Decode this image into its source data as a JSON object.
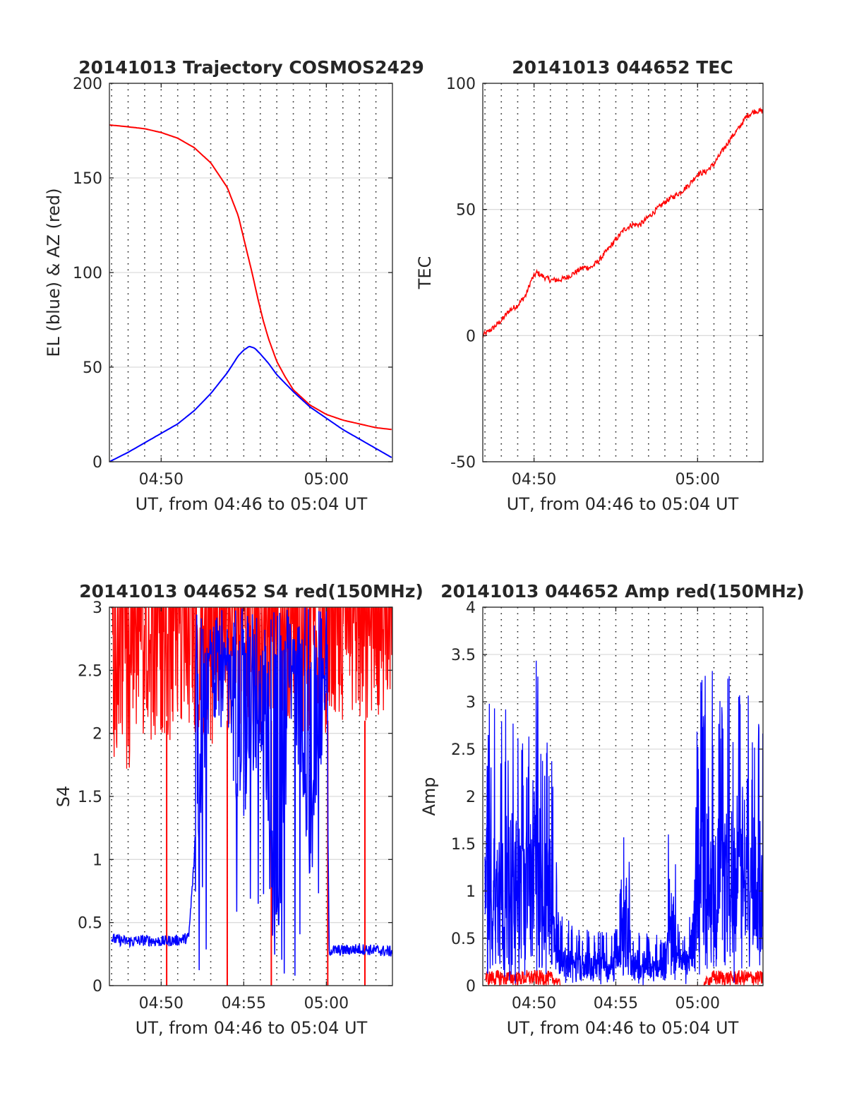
{
  "colors": {
    "el": "#0000ff",
    "az": "#ff0000",
    "tec": "#ff0000",
    "s4_red": "#ff0000",
    "s4_blue": "#0000ff",
    "amp_red": "#ff0000",
    "amp_blue": "#0000ff"
  },
  "chart_data": [
    {
      "id": "trajectory",
      "type": "line",
      "title": "20141013 Trajectory COSMOS2429",
      "xlabel": "UT, from 04:46 to 05:04 UT",
      "ylabel": "EL (blue) & AZ (red)",
      "xlim": [
        "04:46:52",
        "05:04:00"
      ],
      "ylim": [
        0,
        200
      ],
      "yticks": [
        0,
        50,
        100,
        150,
        200
      ],
      "xticks": [
        "04:50",
        "05:00"
      ],
      "vgrid_every_min": 1,
      "hgrid": true,
      "series": [
        {
          "color": "red",
          "x": [
            "04:46:52",
            "04:48:00",
            "04:49:00",
            "04:50:00",
            "04:51:00",
            "04:52:00",
            "04:53:00",
            "04:54:00",
            "04:54:40",
            "04:55:00",
            "04:55:30",
            "04:55:50",
            "04:56:10",
            "04:56:30",
            "04:57:00",
            "04:57:30",
            "04:58:00",
            "04:59:00",
            "05:00:00",
            "05:01:00",
            "05:02:00",
            "05:03:00",
            "05:04:00"
          ],
          "y": [
            178,
            177,
            176,
            174,
            171,
            166,
            158,
            145,
            130,
            118,
            100,
            87,
            75,
            65,
            53,
            45,
            38,
            30,
            25,
            22,
            20,
            18,
            17
          ]
        },
        {
          "color": "blue",
          "x": [
            "04:46:52",
            "04:48:00",
            "04:49:00",
            "04:50:00",
            "04:51:00",
            "04:52:00",
            "04:53:00",
            "04:54:00",
            "04:54:40",
            "04:55:00",
            "04:55:20",
            "04:55:40",
            "04:56:00",
            "04:56:30",
            "04:57:00",
            "04:58:00",
            "04:59:00",
            "05:00:00",
            "05:01:00",
            "05:02:00",
            "05:03:00",
            "05:04:00"
          ],
          "y": [
            0,
            5,
            10,
            15,
            20,
            27,
            36,
            47,
            56,
            59,
            61,
            60,
            57,
            52,
            46,
            37,
            29,
            23,
            17,
            12,
            7,
            2
          ]
        }
      ]
    },
    {
      "id": "tec",
      "type": "line",
      "title": "20141013 044652 TEC",
      "xlabel": "UT, from 04:46 to 05:04 UT",
      "ylabel": "TEC",
      "xlim": [
        "04:46:52",
        "05:04:00"
      ],
      "ylim": [
        -50,
        100
      ],
      "yticks": [
        -50,
        0,
        50,
        100
      ],
      "xticks": [
        "04:50",
        "05:00"
      ],
      "vgrid_every_min": 1,
      "hgrid": true,
      "series": [
        {
          "color": "red",
          "x": [
            "04:46:52",
            "04:47:30",
            "04:48:00",
            "04:48:30",
            "04:49:00",
            "04:49:30",
            "04:49:50",
            "04:50:10",
            "04:50:40",
            "04:51:00",
            "04:51:30",
            "04:52:00",
            "04:52:30",
            "04:53:00",
            "04:53:30",
            "04:54:00",
            "04:54:30",
            "04:55:00",
            "04:55:30",
            "04:56:00",
            "04:56:30",
            "04:57:00",
            "04:57:30",
            "04:58:00",
            "04:58:30",
            "04:59:00",
            "04:59:30",
            "05:00:00",
            "05:00:30",
            "05:01:00",
            "05:01:30",
            "05:02:00",
            "05:02:30",
            "05:03:00",
            "05:03:30",
            "05:04:00"
          ],
          "y": [
            0,
            3,
            6,
            10,
            12,
            16,
            22,
            25,
            23,
            22,
            22,
            23,
            25,
            27,
            27,
            30,
            34,
            38,
            42,
            44,
            44,
            47,
            50,
            53,
            55,
            57,
            60,
            64,
            65,
            68,
            73,
            78,
            82,
            87,
            89,
            89
          ]
        }
      ]
    },
    {
      "id": "s4",
      "type": "line",
      "title": "20141013 044652 S4 red(150MHz)",
      "xlabel": "UT, from 04:46 to 05:04 UT",
      "ylabel": "S4",
      "xlim": [
        "04:46:52",
        "05:04:00"
      ],
      "ylim": [
        0,
        3
      ],
      "yticks": [
        0,
        0.5,
        1,
        1.5,
        2,
        2.5,
        3
      ],
      "xticks": [
        "04:50",
        "04:55",
        "05:00"
      ],
      "vgrid_every_min": 1,
      "hgrid": true,
      "series": [
        {
          "color": "red",
          "description_level_min": [
            2.3,
            2.0,
            2.2,
            1.9,
            2.1,
            2.2,
            2.0,
            2.3,
            2.1,
            2.2,
            2.4,
            2.2,
            2.1,
            2.3,
            2.2,
            2.3,
            2.4
          ],
          "dropouts_min": [
            "04:50:20",
            "04:54:00",
            "04:56:40",
            "05:00:05",
            "05:02:20"
          ],
          "x": [
            "04:47",
            "04:48",
            "04:49",
            "04:50",
            "04:51",
            "04:52",
            "04:53",
            "04:54",
            "04:55",
            "04:56",
            "04:57",
            "04:58",
            "04:59",
            "05:00",
            "05:01",
            "05:02",
            "05:03",
            "05:04"
          ],
          "y_low": [
            1.8,
            1.7,
            1.9,
            2.0,
            1.9,
            2.0,
            1.9,
            2.0,
            2.0,
            2.0,
            2.1,
            2.0,
            2.0,
            2.0,
            2.1,
            2.1,
            2.1,
            2.2
          ],
          "y_high": [
            3,
            3,
            3,
            3,
            3,
            3,
            3,
            3,
            3,
            3,
            3,
            3,
            3,
            3,
            3,
            3,
            3,
            3
          ]
        },
        {
          "color": "blue",
          "x": [
            "04:47:00",
            "04:48:00",
            "04:49:00",
            "04:50:00",
            "04:51:00",
            "04:51:40",
            "04:52:00",
            "04:52:20",
            "04:52:40",
            "04:53:00",
            "04:54:00",
            "04:55:00",
            "04:56:00",
            "04:57:00",
            "04:58:00",
            "04:59:00",
            "05:00:00",
            "05:00:10",
            "05:01:00",
            "05:02:00",
            "05:03:00",
            "05:04:00"
          ],
          "y": [
            0.37,
            0.35,
            0.36,
            0.35,
            0.36,
            0.38,
            1.0,
            1.6,
            2.1,
            2.5,
            2.4,
            1.3,
            2.3,
            0.6,
            2.6,
            1.1,
            2.6,
            0.28,
            0.28,
            0.29,
            0.28,
            0.27
          ]
        }
      ]
    },
    {
      "id": "amp",
      "type": "line",
      "title": "20141013 044652 Amp red(150MHz)",
      "xlabel": "UT, from 04:46 to 05:04 UT",
      "ylabel": "Amp",
      "xlim": [
        "04:46:52",
        "05:04:00"
      ],
      "ylim": [
        0,
        4
      ],
      "yticks": [
        0,
        0.5,
        1,
        1.5,
        2,
        2.5,
        3,
        3.5,
        4
      ],
      "xticks": [
        "04:50",
        "04:55",
        "05:00"
      ],
      "vgrid_every_min": 1,
      "hgrid": true,
      "series": [
        {
          "color": "red",
          "x": [
            "04:47",
            "04:48",
            "04:49",
            "04:50",
            "04:51",
            "04:52",
            "04:53",
            "04:54",
            "04:55",
            "04:56",
            "04:57",
            "04:58",
            "04:59",
            "05:00",
            "05:01",
            "05:02",
            "05:03",
            "05:04"
          ],
          "y": [
            0.12,
            0.13,
            0.12,
            0.13,
            0.12,
            0.0,
            0.0,
            0.0,
            0.0,
            0.0,
            0.0,
            0.0,
            0.0,
            0.0,
            0.13,
            0.12,
            0.13,
            0.12
          ]
        },
        {
          "color": "blue",
          "x": [
            "04:47:00",
            "04:47:30",
            "04:48:00",
            "04:48:30",
            "04:49:00",
            "04:49:30",
            "04:50:00",
            "04:50:30",
            "04:51:00",
            "04:51:30",
            "04:52:00",
            "04:53:00",
            "04:54:00",
            "04:55:00",
            "04:55:40",
            "04:56:00",
            "04:57:00",
            "04:58:00",
            "04:58:20",
            "04:59:00",
            "04:59:30",
            "05:00:00",
            "05:00:30",
            "05:01:00",
            "05:01:30",
            "05:02:00",
            "05:02:30",
            "05:03:00",
            "05:03:30",
            "05:04:00"
          ],
          "y_low": [
            0.1,
            0.2,
            0.3,
            0.2,
            0.3,
            0.2,
            0.3,
            0.2,
            0.3,
            0.2,
            0.1,
            0.1,
            0.1,
            0.1,
            0.2,
            0.1,
            0.1,
            0.2,
            0.3,
            0.2,
            0.1,
            0.2,
            0.6,
            0.5,
            0.6,
            0.5,
            0.6,
            0.5,
            0.6,
            0.5
          ],
          "y_high": [
            3.0,
            3.0,
            2.8,
            3.2,
            2.8,
            2.6,
            3.8,
            2.7,
            3.0,
            0.8,
            0.7,
            0.6,
            0.6,
            0.6,
            1.95,
            0.6,
            0.6,
            0.5,
            2.3,
            0.6,
            0.7,
            2.9,
            3.8,
            3.3,
            3.0,
            3.4,
            3.1,
            3.5,
            3.2,
            3.3
          ]
        }
      ]
    }
  ]
}
